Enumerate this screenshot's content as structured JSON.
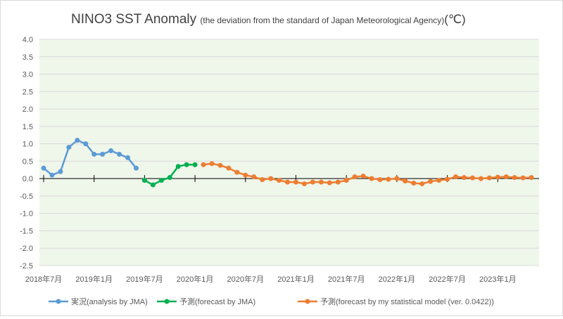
{
  "chart_data": {
    "type": "line",
    "title": "NINO3 SST Anomaly",
    "subtitle": "(the deviation from the standard of Japan Meteorological Agency)",
    "unit": "(℃)",
    "ylim": [
      -2.5,
      4.0
    ],
    "yticks": [
      "4.0",
      "3.5",
      "3.0",
      "2.5",
      "2.0",
      "1.5",
      "1.0",
      "0.5",
      "0.0",
      "-0.5",
      "-1.0",
      "-1.5",
      "-2.0",
      "-2.5"
    ],
    "xticks": [
      "2018年7月",
      "2019年1月",
      "2019年7月",
      "2020年1月",
      "2020年7月",
      "2021年1月",
      "2021年7月",
      "2022年1月",
      "2022年7月",
      "2023年1月"
    ],
    "grid": true,
    "legend_placement": "bottom",
    "series": [
      {
        "name": "実況(analysis by JMA)",
        "color": "#5b9bd5",
        "start": "2018-07",
        "values": [
          0.3,
          0.1,
          0.2,
          0.9,
          1.1,
          1.0,
          0.7,
          0.7,
          0.8,
          0.7,
          0.6,
          0.3
        ]
      },
      {
        "name": "予測(forecast by JMA)",
        "color": "#00b050",
        "start": "2019-07",
        "values": [
          -0.05,
          -0.18,
          -0.05,
          0.03,
          0.35,
          0.4,
          0.4
        ]
      },
      {
        "name": "予測(forecast by my statistical model (ver. 0.0422))",
        "color": "#ed7d31",
        "start": "2020-02",
        "values": [
          0.4,
          0.43,
          0.38,
          0.3,
          0.18,
          0.1,
          0.05,
          -0.03,
          0.0,
          -0.05,
          -0.1,
          -0.1,
          -0.15,
          -0.1,
          -0.1,
          -0.12,
          -0.1,
          -0.05,
          0.05,
          0.07,
          0.0,
          -0.03,
          -0.02,
          0.0,
          -0.07,
          -0.13,
          -0.15,
          -0.08,
          -0.05,
          -0.02,
          0.05,
          0.03,
          0.02,
          0.0,
          0.02,
          0.04,
          0.05,
          0.03,
          0.02,
          0.03
        ]
      }
    ]
  }
}
